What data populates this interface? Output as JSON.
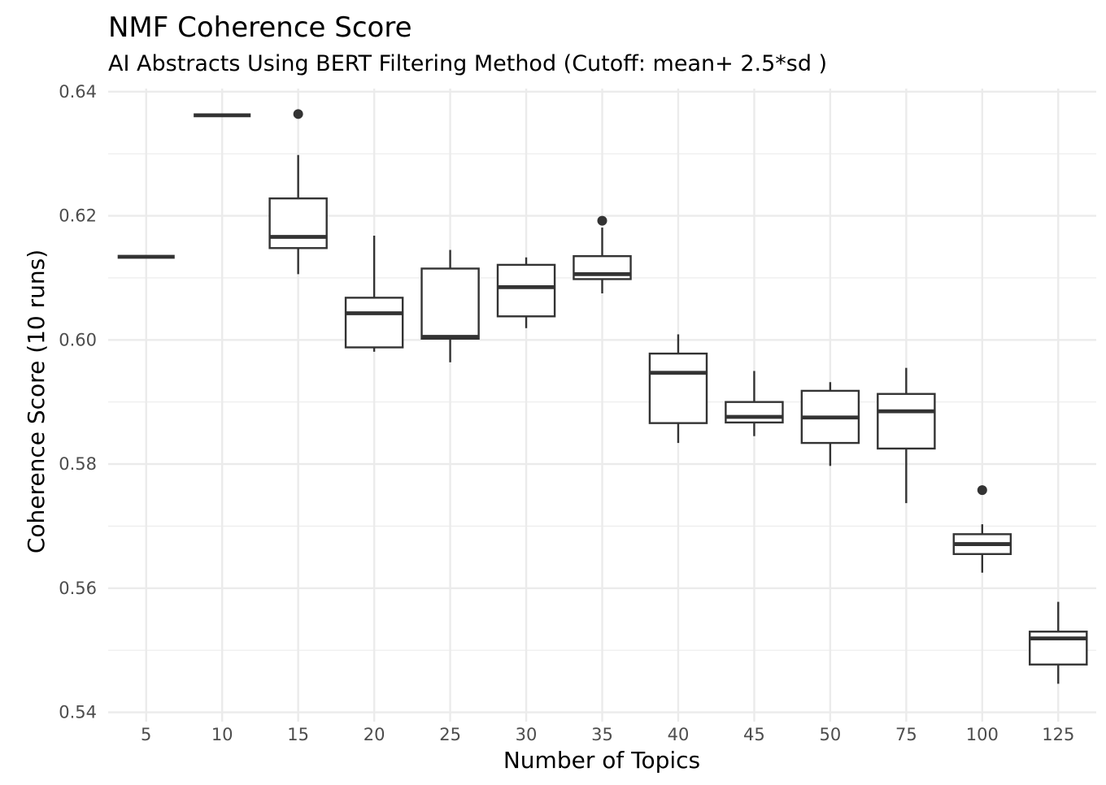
{
  "chart_data": {
    "type": "boxplot",
    "title": "NMF Coherence Score",
    "subtitle": "AI Abstracts Using BERT Filtering Method (Cutoff: mean+ 2.5*sd )",
    "xlabel": "Number of Topics",
    "ylabel": "Coherence Score (10 runs)",
    "ylim": [
      0.5385,
      0.6405
    ],
    "yticks": [
      "0.54",
      "0.56",
      "0.58",
      "0.60",
      "0.62",
      "0.64"
    ],
    "ytick_values": [
      0.54,
      0.56,
      0.58,
      0.6,
      0.62,
      0.64
    ],
    "grid": true,
    "categories": [
      "5",
      "10",
      "15",
      "20",
      "25",
      "30",
      "35",
      "40",
      "45",
      "50",
      "75",
      "100",
      "125"
    ],
    "boxes": [
      {
        "category": "5",
        "lower_whisker": 0.6134,
        "q1": 0.6134,
        "median": 0.6134,
        "q3": 0.6134,
        "upper_whisker": 0.6134,
        "outliers": []
      },
      {
        "category": "10",
        "lower_whisker": 0.6362,
        "q1": 0.6362,
        "median": 0.6362,
        "q3": 0.6362,
        "upper_whisker": 0.6362,
        "outliers": []
      },
      {
        "category": "15",
        "lower_whisker": 0.6106,
        "q1": 0.6148,
        "median": 0.6166,
        "q3": 0.6228,
        "upper_whisker": 0.6298,
        "outliers": [
          0.6364
        ]
      },
      {
        "category": "20",
        "lower_whisker": 0.5981,
        "q1": 0.5988,
        "median": 0.6043,
        "q3": 0.6068,
        "upper_whisker": 0.6168,
        "outliers": []
      },
      {
        "category": "25",
        "lower_whisker": 0.5964,
        "q1": 0.6002,
        "median": 0.6005,
        "q3": 0.6115,
        "upper_whisker": 0.6145,
        "outliers": []
      },
      {
        "category": "30",
        "lower_whisker": 0.6019,
        "q1": 0.6038,
        "median": 0.6085,
        "q3": 0.6121,
        "upper_whisker": 0.6133,
        "outliers": []
      },
      {
        "category": "35",
        "lower_whisker": 0.6075,
        "q1": 0.6098,
        "median": 0.6106,
        "q3": 0.6135,
        "upper_whisker": 0.6181,
        "outliers": [
          0.6192
        ]
      },
      {
        "category": "40",
        "lower_whisker": 0.5834,
        "q1": 0.5866,
        "median": 0.5947,
        "q3": 0.5978,
        "upper_whisker": 0.6009,
        "outliers": []
      },
      {
        "category": "45",
        "lower_whisker": 0.5845,
        "q1": 0.5867,
        "median": 0.5876,
        "q3": 0.59,
        "upper_whisker": 0.595,
        "outliers": []
      },
      {
        "category": "50",
        "lower_whisker": 0.5797,
        "q1": 0.5834,
        "median": 0.5875,
        "q3": 0.5918,
        "upper_whisker": 0.5932,
        "outliers": []
      },
      {
        "category": "75",
        "lower_whisker": 0.5737,
        "q1": 0.5825,
        "median": 0.5885,
        "q3": 0.5913,
        "upper_whisker": 0.5955,
        "outliers": []
      },
      {
        "category": "100",
        "lower_whisker": 0.5625,
        "q1": 0.5655,
        "median": 0.5671,
        "q3": 0.5687,
        "upper_whisker": 0.5703,
        "outliers": [
          0.5758
        ]
      },
      {
        "category": "125",
        "lower_whisker": 0.5446,
        "q1": 0.5477,
        "median": 0.5519,
        "q3": 0.553,
        "upper_whisker": 0.5578,
        "outliers": []
      }
    ],
    "colors": {
      "box": "#333333",
      "grid": "#ebebeb",
      "tick": "#4d4d4d",
      "background": "#ffffff"
    }
  }
}
